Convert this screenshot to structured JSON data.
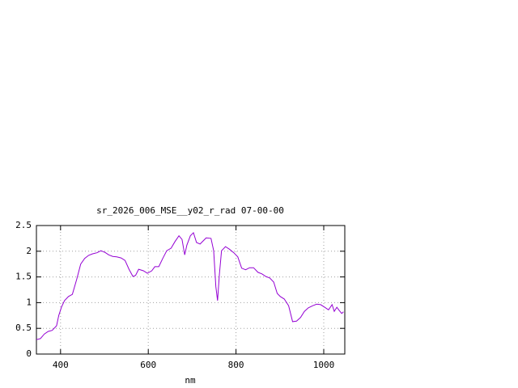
{
  "chart_data": {
    "type": "line",
    "title": "sr_2026_006_MSE__y02_r_rad 07-00-00",
    "x_label": "nm",
    "xlim": [
      345,
      1048
    ],
    "ylim": [
      0,
      2.5
    ],
    "xticks": [
      400,
      600,
      800,
      1000
    ],
    "yticks": [
      0,
      0.5,
      1,
      1.5,
      2,
      2.5
    ],
    "grid": true,
    "series": [
      {
        "color": "#9400d3",
        "x": [
          345,
          354,
          363,
          372,
          381,
          391,
          396,
          402,
          409,
          418,
          427,
          437,
          446,
          455,
          464,
          473,
          483,
          492,
          501,
          510,
          519,
          528,
          538,
          547,
          556,
          565,
          571,
          578,
          589,
          598,
          608,
          615,
          624,
          633,
          642,
          652,
          661,
          670,
          677,
          683,
          688,
          696,
          703,
          710,
          718,
          725,
          732,
          743,
          749,
          754,
          758,
          762,
          767,
          776,
          785,
          795,
          804,
          813,
          822,
          831,
          840,
          850,
          859,
          868,
          877,
          886,
          894,
          901,
          910,
          920,
          929,
          938,
          947,
          956,
          965,
          975,
          984,
          993,
          1002,
          1011,
          1019,
          1024,
          1030,
          1035,
          1041,
          1045
        ],
        "values": [
          0.28,
          0.3,
          0.39,
          0.44,
          0.46,
          0.55,
          0.75,
          0.91,
          1.04,
          1.12,
          1.16,
          1.46,
          1.75,
          1.86,
          1.92,
          1.95,
          1.97,
          2.01,
          1.98,
          1.93,
          1.9,
          1.89,
          1.87,
          1.82,
          1.65,
          1.51,
          1.53,
          1.65,
          1.62,
          1.57,
          1.62,
          1.7,
          1.7,
          1.86,
          2.01,
          2.06,
          2.19,
          2.3,
          2.23,
          1.93,
          2.12,
          2.3,
          2.36,
          2.17,
          2.14,
          2.2,
          2.26,
          2.25,
          2.01,
          1.31,
          1.04,
          1.54,
          2.01,
          2.09,
          2.04,
          1.97,
          1.89,
          1.67,
          1.64,
          1.68,
          1.68,
          1.59,
          1.56,
          1.51,
          1.48,
          1.4,
          1.18,
          1.12,
          1.07,
          0.94,
          0.63,
          0.64,
          0.71,
          0.83,
          0.9,
          0.94,
          0.97,
          0.96,
          0.91,
          0.86,
          0.96,
          0.83,
          0.91,
          0.85,
          0.79,
          0.82
        ]
      }
    ]
  }
}
